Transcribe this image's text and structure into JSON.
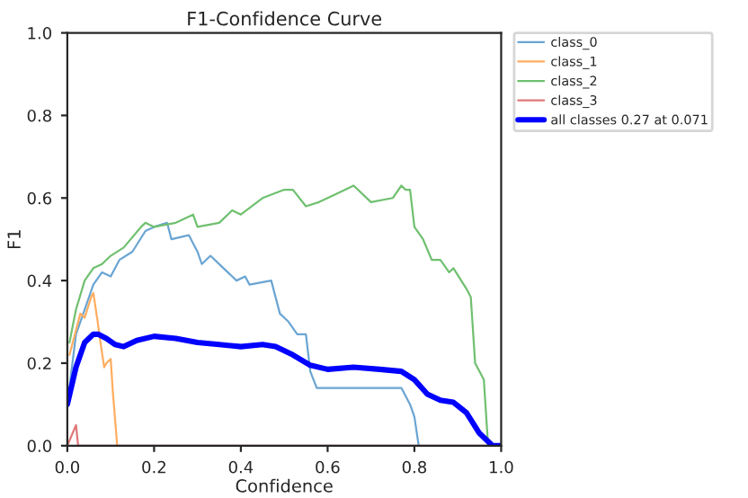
{
  "chart_data": {
    "type": "line",
    "title": "F1-Confidence Curve",
    "xlabel": "Confidence",
    "ylabel": "F1",
    "xlim": [
      0,
      1
    ],
    "ylim": [
      0,
      1
    ],
    "xticks": [
      {
        "value": 0,
        "label": "0.0"
      },
      {
        "value": 0.2,
        "label": "0.2"
      },
      {
        "value": 0.4,
        "label": "0.4"
      },
      {
        "value": 0.6,
        "label": "0.6"
      },
      {
        "value": 0.8,
        "label": "0.8"
      },
      {
        "value": 1,
        "label": "1.0"
      }
    ],
    "yticks": [
      {
        "value": 0,
        "label": "0.0"
      },
      {
        "value": 0.2,
        "label": "0.2"
      },
      {
        "value": 0.4,
        "label": "0.4"
      },
      {
        "value": 0.6,
        "label": "0.6"
      },
      {
        "value": 0.8,
        "label": "0.8"
      },
      {
        "value": 1,
        "label": "1.0"
      }
    ],
    "grid": false,
    "legend": "top right",
    "marker": "none",
    "line_style": "solid",
    "series": [
      {
        "name": "class_0",
        "color": "#6aa5d3",
        "x": [
          0,
          0.02,
          0.04,
          0.06,
          0.08,
          0.1,
          0.12,
          0.15,
          0.18,
          0.2,
          0.23,
          0.24,
          0.28,
          0.3,
          0.31,
          0.33,
          0.36,
          0.38,
          0.39,
          0.41,
          0.42,
          0.47,
          0.49,
          0.51,
          0.53,
          0.55,
          0.56,
          0.575,
          0.77,
          0.79,
          0.8,
          0.81
        ],
        "values": [
          0.1,
          0.27,
          0.33,
          0.39,
          0.42,
          0.41,
          0.45,
          0.47,
          0.52,
          0.53,
          0.54,
          0.5,
          0.51,
          0.47,
          0.44,
          0.46,
          0.43,
          0.41,
          0.4,
          0.41,
          0.39,
          0.4,
          0.32,
          0.3,
          0.27,
          0.27,
          0.18,
          0.14,
          0.14,
          0.1,
          0.07,
          0.0
        ]
      },
      {
        "name": "class_1",
        "color": "#ffad60",
        "x": [
          0.005,
          0.02,
          0.03,
          0.04,
          0.055,
          0.06,
          0.07,
          0.075,
          0.085,
          0.09,
          0.1,
          0.105,
          0.115
        ],
        "values": [
          0.22,
          0.28,
          0.32,
          0.31,
          0.36,
          0.37,
          0.3,
          0.26,
          0.19,
          0.2,
          0.21,
          0.13,
          0.0
        ]
      },
      {
        "name": "class_2",
        "color": "#70c070",
        "x": [
          0.005,
          0.02,
          0.04,
          0.06,
          0.08,
          0.1,
          0.13,
          0.17,
          0.18,
          0.2,
          0.25,
          0.29,
          0.3,
          0.35,
          0.38,
          0.4,
          0.45,
          0.5,
          0.52,
          0.55,
          0.58,
          0.6,
          0.62,
          0.66,
          0.7,
          0.75,
          0.77,
          0.78,
          0.79,
          0.8,
          0.82,
          0.84,
          0.86,
          0.88,
          0.89,
          0.92,
          0.93,
          0.94,
          0.96,
          0.97
        ],
        "values": [
          0.25,
          0.33,
          0.4,
          0.43,
          0.44,
          0.46,
          0.48,
          0.53,
          0.54,
          0.53,
          0.54,
          0.56,
          0.53,
          0.54,
          0.57,
          0.56,
          0.6,
          0.62,
          0.62,
          0.58,
          0.59,
          0.6,
          0.61,
          0.63,
          0.59,
          0.6,
          0.63,
          0.62,
          0.62,
          0.53,
          0.5,
          0.45,
          0.45,
          0.42,
          0.43,
          0.38,
          0.36,
          0.2,
          0.16,
          0.0
        ]
      },
      {
        "name": "class_3",
        "color": "#e07878",
        "x": [
          0,
          0.02,
          0.025,
          1.0
        ],
        "values": [
          0.0,
          0.05,
          0.0,
          0.0
        ]
      },
      {
        "name": "all classes 0.27 at 0.071",
        "color": "#0000ff",
        "x": [
          0,
          0.02,
          0.04,
          0.06,
          0.071,
          0.09,
          0.11,
          0.13,
          0.16,
          0.2,
          0.25,
          0.3,
          0.35,
          0.4,
          0.45,
          0.48,
          0.52,
          0.56,
          0.6,
          0.66,
          0.72,
          0.77,
          0.8,
          0.83,
          0.86,
          0.89,
          0.92,
          0.95,
          0.98,
          1.0
        ],
        "values": [
          0.1,
          0.19,
          0.25,
          0.27,
          0.27,
          0.26,
          0.245,
          0.24,
          0.255,
          0.265,
          0.26,
          0.25,
          0.245,
          0.24,
          0.245,
          0.24,
          0.22,
          0.195,
          0.185,
          0.19,
          0.185,
          0.18,
          0.16,
          0.125,
          0.11,
          0.105,
          0.08,
          0.03,
          0.0,
          0.0
        ]
      }
    ]
  }
}
